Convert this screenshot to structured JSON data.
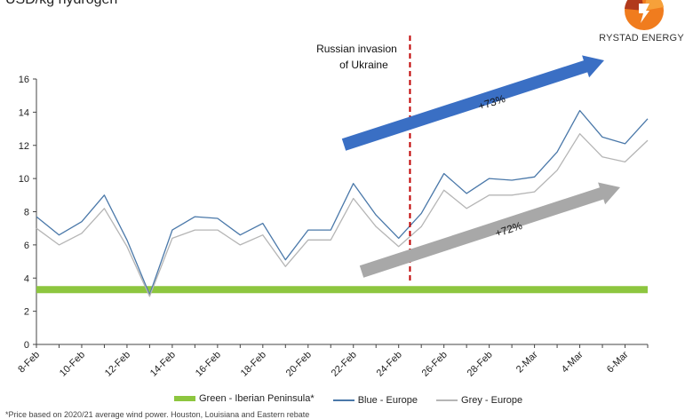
{
  "header": {
    "title": "USD/kg hydrogen"
  },
  "logo": {
    "text": "RYSTAD ENERGY",
    "icon": "rystad-sunburst-logo"
  },
  "annotations": {
    "invasion": "Russian invasion\nof Ukraine",
    "blue_arrow": "+73%",
    "grey_arrow": "+72%"
  },
  "footnote": "*Price based on 2020/21 average wind power. Houston, Louisiana and Eastern rebate",
  "colors": {
    "green": "#8dc63f",
    "blue": "#4a78a9",
    "grey": "#b5b5b5",
    "arrow_blue": "#3a6fc4",
    "arrow_grey": "#a8a8a8",
    "invasion_line": "#c00000"
  },
  "chart_data": {
    "type": "line",
    "title": "",
    "xlabel": "",
    "ylabel": "USD/kg hydrogen",
    "ylim": [
      0,
      16
    ],
    "yticks": [
      0,
      2,
      4,
      6,
      8,
      10,
      12,
      14,
      16
    ],
    "xticklabels": [
      "8-Feb",
      "10-Feb",
      "12-Feb",
      "14-Feb",
      "16-Feb",
      "18-Feb",
      "20-Feb",
      "22-Feb",
      "24-Feb",
      "26-Feb",
      "28-Feb",
      "2-Mar",
      "4-Mar",
      "6-Mar"
    ],
    "x": [
      "8-Feb",
      "9-Feb",
      "10-Feb",
      "11-Feb",
      "12-Feb",
      "13-Feb",
      "14-Feb",
      "15-Feb",
      "16-Feb",
      "17-Feb",
      "18-Feb",
      "19-Feb",
      "20-Feb",
      "21-Feb",
      "22-Feb",
      "23-Feb",
      "24-Feb",
      "25-Feb",
      "26-Feb",
      "27-Feb",
      "28-Feb",
      "1-Mar",
      "2-Mar",
      "3-Mar",
      "4-Mar",
      "5-Mar",
      "6-Mar",
      "7-Mar"
    ],
    "series": [
      {
        "name": "Green - Iberian Peninsula*",
        "values": [
          3.3,
          3.3,
          3.3,
          3.3,
          3.3,
          3.3,
          3.3,
          3.3,
          3.3,
          3.3,
          3.3,
          3.3,
          3.3,
          3.3,
          3.3,
          3.3,
          3.3,
          3.3,
          3.3,
          3.3,
          3.3,
          3.3,
          3.3,
          3.3,
          3.3,
          3.3,
          3.3,
          3.3
        ]
      },
      {
        "name": "Blue - Europe",
        "values": [
          7.7,
          6.6,
          7.4,
          9.0,
          6.3,
          3.0,
          6.9,
          7.7,
          7.6,
          6.6,
          7.3,
          5.1,
          6.9,
          6.9,
          9.7,
          7.8,
          6.4,
          7.9,
          10.3,
          9.1,
          10.0,
          9.9,
          10.1,
          11.6,
          14.1,
          12.5,
          12.1,
          13.6
        ]
      },
      {
        "name": "Grey - Europe",
        "values": [
          7.0,
          6.0,
          6.7,
          8.2,
          5.9,
          2.9,
          6.4,
          6.9,
          6.9,
          6.0,
          6.6,
          4.7,
          6.3,
          6.3,
          8.8,
          7.1,
          5.9,
          7.1,
          9.3,
          8.2,
          9.0,
          9.0,
          9.2,
          10.5,
          12.7,
          11.3,
          11.0,
          12.3
        ]
      }
    ],
    "invasion_after": "24-Feb",
    "grid": false,
    "legend": "bottom"
  }
}
